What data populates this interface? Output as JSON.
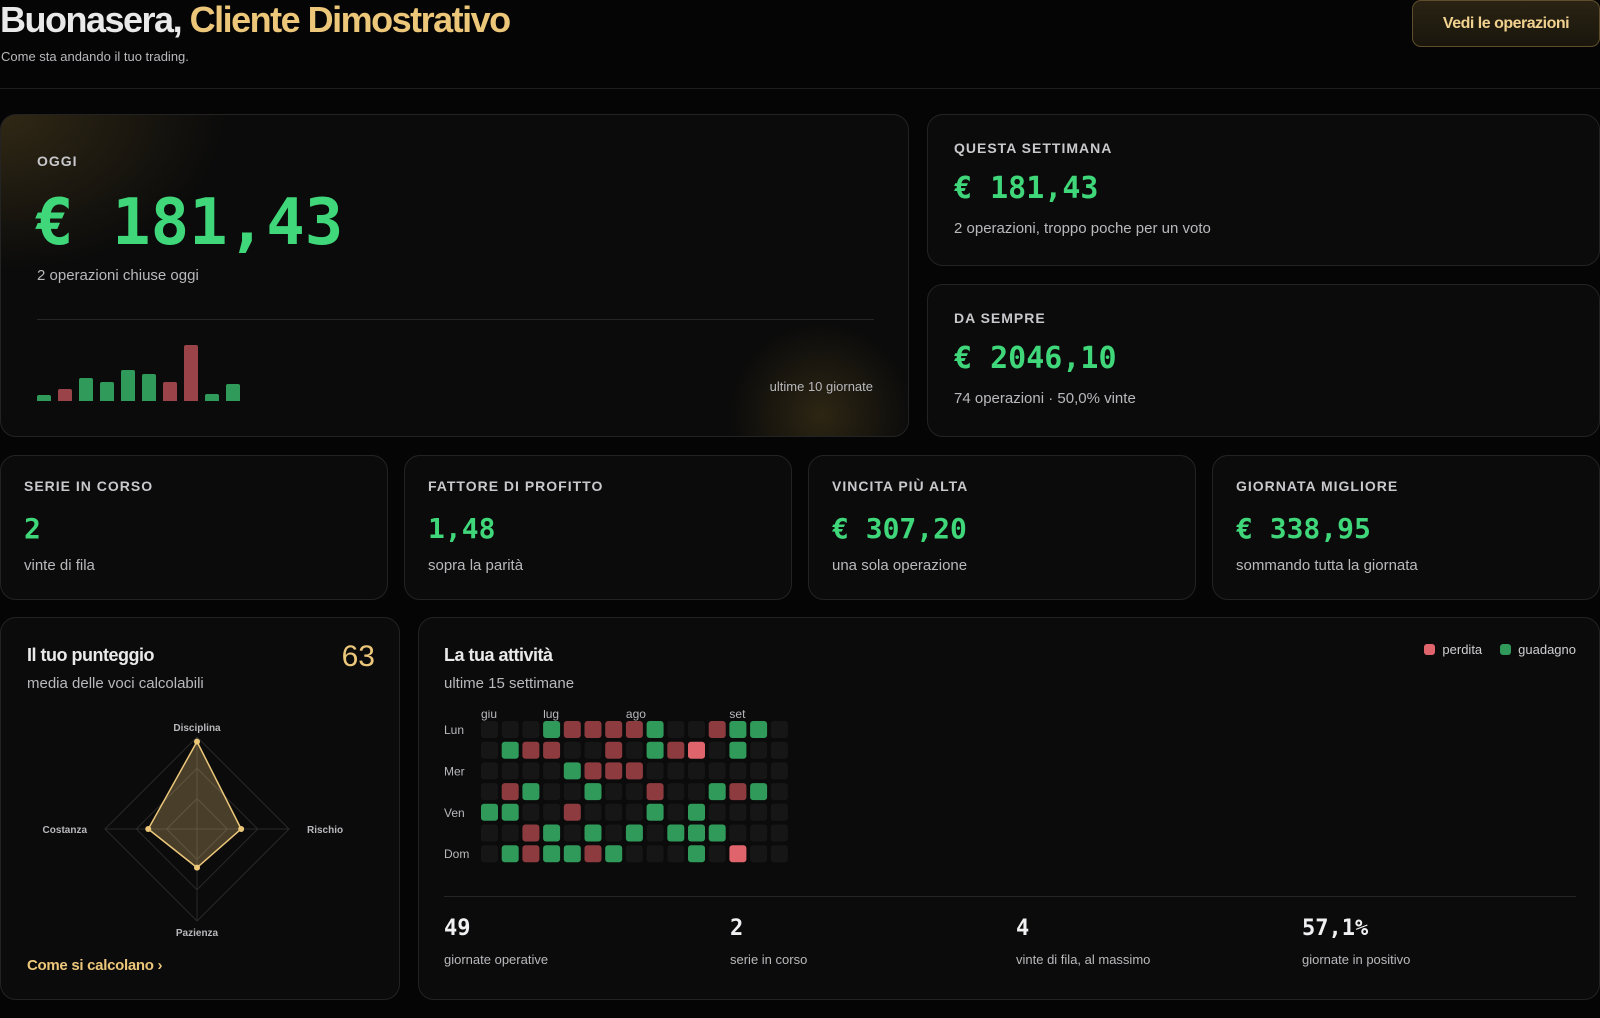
{
  "header": {
    "greeting_prefix": "Buonasera,",
    "greeting_name": "Cliente Dimostrativo",
    "subtitle": "Come sta andando il tuo trading.",
    "ops_button": "Vedi le operazioni"
  },
  "today": {
    "label": "OGGI",
    "value": "€ 181,43",
    "sub": "2 operazioni chiuse oggi",
    "caption": "ultime 10 giornate",
    "bars": [
      {
        "value": 6,
        "result": "gain"
      },
      {
        "value": 12,
        "result": "loss"
      },
      {
        "value": 22,
        "result": "gain"
      },
      {
        "value": 18,
        "result": "gain"
      },
      {
        "value": 30,
        "result": "gain"
      },
      {
        "value": 26,
        "result": "gain"
      },
      {
        "value": 18,
        "result": "loss"
      },
      {
        "value": 54,
        "result": "loss"
      },
      {
        "value": 7,
        "result": "gain"
      },
      {
        "value": 16,
        "result": "gain"
      }
    ]
  },
  "week": {
    "label": "QUESTA SETTIMANA",
    "value": "€ 181,43",
    "sub": "2 operazioni, troppo poche per un voto"
  },
  "ever": {
    "label": "DA SEMPRE",
    "value": "€ 2046,10",
    "sub": "74 operazioni · 50,0% vinte"
  },
  "stats": [
    {
      "label": "SERIE IN CORSO",
      "value": "2",
      "sub": "vinte di fila"
    },
    {
      "label": "FATTORE DI PROFITTO",
      "value": "1,48",
      "sub": "sopra la parità"
    },
    {
      "label": "VINCITA PIÙ ALTA",
      "value": "€ 307,20",
      "sub": "una sola operazione"
    },
    {
      "label": "GIORNATA MIGLIORE",
      "value": "€ 338,95",
      "sub": "sommando tutta la giornata"
    }
  ],
  "score": {
    "title": "Il tuo punteggio",
    "sub": "media delle voci calcolabili",
    "value": "63",
    "link": "Come si calcolano ›",
    "axes": [
      "Disciplina",
      "Rischio",
      "Pazienza",
      "Costanza"
    ],
    "levels": [
      0.95,
      0.48,
      0.42,
      0.53
    ]
  },
  "activity": {
    "title": "La tua attività",
    "sub": "ultime 15 settimane",
    "legend_loss": "perdita",
    "legend_gain": "guadagno",
    "months": [
      {
        "label": "giu",
        "week": 0
      },
      {
        "label": "lug",
        "week": 3
      },
      {
        "label": "ago",
        "week": 7
      },
      {
        "label": "set",
        "week": 12
      }
    ],
    "day_labels": [
      {
        "label": "Lun",
        "row": 0
      },
      {
        "label": "Mer",
        "row": 2
      },
      {
        "label": "Ven",
        "row": 4
      },
      {
        "label": "Dom",
        "row": 6
      }
    ],
    "grid": [
      "...G....LRG.LRR..L..GGRLRGGG....G.Gr",
      ".RRL.L.l...RGRr.rRGRG..R.L.G.GLlR...",
      "..G.Lr..LL.Gr.G...RG.L.RL..GR.L.R.."
    ],
    "weeks": [
      [
        "e",
        "e",
        "e",
        "e",
        "g",
        "e",
        "e"
      ],
      [
        "e",
        "g",
        "e",
        "l",
        "g",
        "e",
        "g"
      ],
      [
        "e",
        "l",
        "e",
        "g",
        "e",
        "l",
        "l"
      ],
      [
        "g",
        "l",
        "e",
        "e",
        "e",
        "g",
        "g"
      ],
      [
        "l",
        "e",
        "g",
        "e",
        "l",
        "e",
        "g"
      ],
      [
        "l",
        "e",
        "l",
        "g",
        "e",
        "g",
        "l"
      ],
      [
        "l",
        "l",
        "l",
        "e",
        "e",
        "e",
        "g"
      ],
      [
        "l",
        "e",
        "l",
        "e",
        "e",
        "g",
        "e"
      ],
      [
        "g",
        "g",
        "e",
        "l",
        "g",
        "e",
        "e"
      ],
      [
        "e",
        "l",
        "e",
        "e",
        "e",
        "g",
        "e"
      ],
      [
        "e",
        "L",
        "e",
        "e",
        "g",
        "g",
        "g"
      ],
      [
        "l",
        "e",
        "e",
        "g",
        "e",
        "g",
        "e"
      ],
      [
        "g",
        "g",
        "e",
        "l",
        "e",
        "e",
        "L"
      ],
      [
        "g",
        "e",
        "e",
        "g",
        "e",
        "e",
        "e"
      ],
      [
        "e",
        "e",
        "e",
        "e",
        "e",
        "e",
        "e"
      ]
    ],
    "summary": [
      {
        "value": "49",
        "label": "giornate operative"
      },
      {
        "value": "2",
        "label": "serie in corso"
      },
      {
        "value": "4",
        "label": "vinte di fila, al massimo"
      },
      {
        "value": "57,1%",
        "label": "giornate in positivo"
      }
    ]
  },
  "colors": {
    "gain": "#2f9a5a",
    "loss": "#8e3b40",
    "loss_strong": "#e0646c",
    "empty": "#161616",
    "accent": "#ecc77a"
  }
}
